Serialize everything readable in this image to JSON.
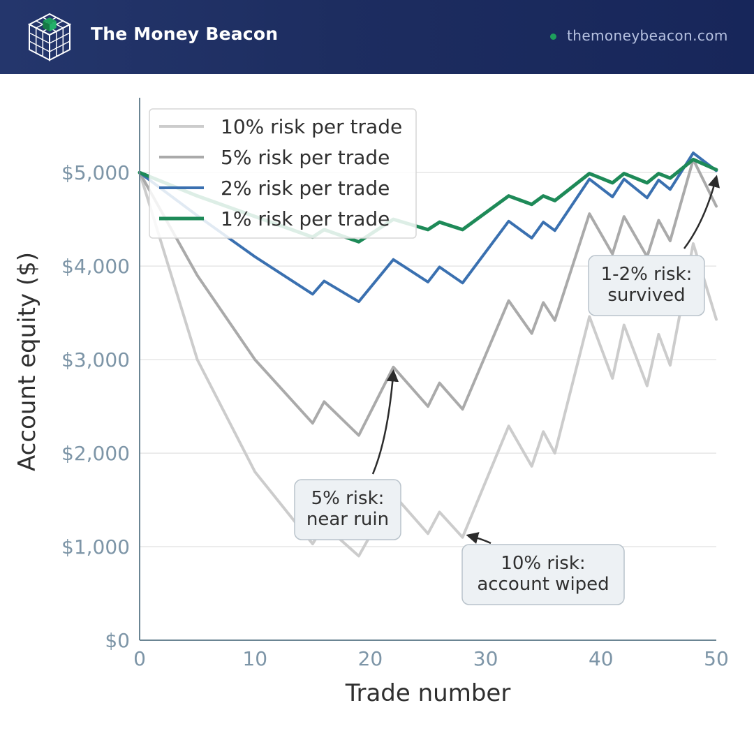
{
  "header": {
    "brand": "The Money Beacon",
    "site": "themoneybeacon.com",
    "logo_icon": "cube-grid-logo-icon",
    "status_dot_icon": "green-dot-icon"
  },
  "colors": {
    "header_bg": "#1d2d60",
    "brand_text": "#ffffff",
    "site_text": "#b8c3e2",
    "accent_green": "#1e9e5c",
    "axis": "#6b8593",
    "tick_text": "#7d95a7",
    "grid": "#e6e6e6",
    "annotation_bg": "#edf1f4",
    "annotation_border": "#b9c3cb"
  },
  "chart_data": {
    "type": "line",
    "xlabel": "Trade number",
    "ylabel": "Account equity ($)",
    "xlim": [
      0,
      50
    ],
    "ylim": [
      0,
      5800
    ],
    "xticks": [
      0,
      10,
      20,
      30,
      40,
      50
    ],
    "xtick_labels": [
      "0",
      "10",
      "20",
      "30",
      "40",
      "50"
    ],
    "yticks": [
      0,
      1000,
      2000,
      3000,
      4000,
      5000
    ],
    "ytick_labels": [
      "$0",
      "$1,000",
      "$2,000",
      "$3,000",
      "$4,000",
      "$5,000"
    ],
    "grid": "horizontal",
    "legend_position": "top-left",
    "series": [
      {
        "name": "10% risk per trade",
        "color": "#cccccc",
        "width": 4,
        "x": [
          0,
          5,
          10,
          15,
          16,
          19,
          22,
          25,
          26,
          28,
          32,
          34,
          35,
          36,
          39,
          41,
          42,
          44,
          45,
          46,
          48,
          50
        ],
        "y": [
          5000,
          3000,
          1800,
          1030,
          1230,
          900,
          1560,
          1140,
          1370,
          1100,
          2290,
          1860,
          2230,
          2000,
          3460,
          2800,
          3370,
          2720,
          3270,
          2940,
          4240,
          3430
        ]
      },
      {
        "name": "5% risk per trade",
        "color": "#aaaaaa",
        "width": 4,
        "x": [
          0,
          5,
          10,
          15,
          16,
          19,
          22,
          25,
          26,
          28,
          32,
          34,
          35,
          36,
          39,
          41,
          42,
          44,
          45,
          46,
          48,
          50
        ],
        "y": [
          5000,
          3900,
          3000,
          2320,
          2550,
          2190,
          2920,
          2500,
          2750,
          2470,
          3630,
          3280,
          3610,
          3420,
          4560,
          4130,
          4530,
          4100,
          4490,
          4270,
          5140,
          4640
        ]
      },
      {
        "name": "2% risk per trade",
        "color": "#3a70b0",
        "width": 4,
        "x": [
          0,
          5,
          10,
          15,
          16,
          19,
          22,
          25,
          26,
          28,
          32,
          34,
          35,
          36,
          39,
          41,
          42,
          44,
          45,
          46,
          48,
          50
        ],
        "y": [
          5000,
          4540,
          4100,
          3700,
          3840,
          3620,
          4070,
          3830,
          3990,
          3820,
          4480,
          4300,
          4470,
          4380,
          4930,
          4740,
          4930,
          4730,
          4920,
          4820,
          5210,
          5020
        ]
      },
      {
        "name": "1% risk per trade",
        "color": "#1e8a58",
        "width": 5,
        "x": [
          0,
          5,
          10,
          15,
          16,
          19,
          22,
          25,
          26,
          28,
          32,
          34,
          35,
          36,
          39,
          41,
          42,
          44,
          45,
          46,
          48,
          50
        ],
        "y": [
          5000,
          4750,
          4530,
          4310,
          4390,
          4260,
          4500,
          4390,
          4470,
          4390,
          4750,
          4660,
          4750,
          4700,
          4990,
          4890,
          4990,
          4890,
          4990,
          4940,
          5140,
          5030
        ]
      }
    ],
    "annotations": [
      {
        "lines": [
          "5% risk:",
          "near ruin"
        ],
        "arrow_to": [
          22,
          2870
        ]
      },
      {
        "lines": [
          "10% risk:",
          "account wiped"
        ],
        "arrow_to": [
          28.5,
          1120
        ]
      },
      {
        "lines": [
          "1-2% risk:",
          "survived"
        ],
        "arrow_to": [
          50,
          4950
        ]
      }
    ]
  }
}
